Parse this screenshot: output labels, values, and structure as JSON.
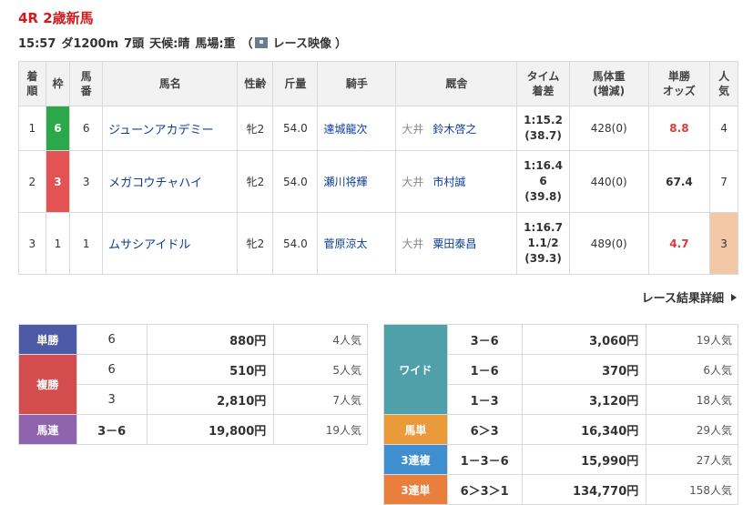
{
  "race": {
    "title": "4R 2歳新馬",
    "time": "15:57",
    "course": "ダ1200m",
    "heads": "7頭",
    "weather": "天候:晴",
    "track": "馬場:重",
    "video_open": "（",
    "video_label": "レース映像",
    "video_close": "）"
  },
  "results_headers": {
    "finish": [
      "着",
      "順"
    ],
    "frame": "枠",
    "num": [
      "馬",
      "番"
    ],
    "name": "馬名",
    "sexage": "性齢",
    "weight": "斤量",
    "jockey": "騎手",
    "stable": "厩舎",
    "time": [
      "タイム",
      "着差"
    ],
    "body": [
      "馬体重",
      "(増減)"
    ],
    "odds": [
      "単勝",
      "オッズ"
    ],
    "pop": [
      "人",
      "気"
    ]
  },
  "results": [
    {
      "finish": "1",
      "frame": "6",
      "frame_color": "#2aa84a",
      "num": "6",
      "name": "ジューンアカデミー",
      "sexage": "牝2",
      "weight": "54.0",
      "jockey": "達城龍次",
      "loc": "大井",
      "trainer": "鈴木啓之",
      "time": [
        "1:15.2",
        "(38.7)"
      ],
      "body": "428(0)",
      "odds": "8.8",
      "odds_style": "red",
      "pop": "4",
      "pop_hl": false
    },
    {
      "finish": "2",
      "frame": "3",
      "frame_color": "#e35353",
      "num": "3",
      "name": "メガコウチャハイ",
      "sexage": "牝2",
      "weight": "54.0",
      "jockey": "瀬川将輝",
      "loc": "大井",
      "trainer": "市村誠",
      "time": [
        "1:16.4",
        "6",
        "(39.8)"
      ],
      "body": "440(0)",
      "odds": "67.4",
      "odds_style": "plain",
      "pop": "7",
      "pop_hl": false
    },
    {
      "finish": "3",
      "frame": "1",
      "frame_color": "#ffffff",
      "num": "1",
      "name": "ムサシアイドル",
      "sexage": "牝2",
      "weight": "54.0",
      "jockey": "菅原涼太",
      "loc": "大井",
      "trainer": "粟田泰昌",
      "time": [
        "1:16.7",
        "1.1/2",
        "(39.3)"
      ],
      "body": "489(0)",
      "odds": "4.7",
      "odds_style": "red",
      "pop": "3",
      "pop_hl": true
    }
  ],
  "detail_link": "レース結果詳細",
  "payouts_left": {
    "win": {
      "label": "単勝",
      "rows": [
        {
          "combo": "6",
          "amount": "880円",
          "pop": "4人気"
        }
      ]
    },
    "place": {
      "label": "複勝",
      "rows": [
        {
          "combo": "6",
          "amount": "510円",
          "pop": "5人気"
        },
        {
          "combo": "3",
          "amount": "2,810円",
          "pop": "7人気"
        }
      ]
    },
    "quinella": {
      "label": "馬連",
      "rows": [
        {
          "combo": "3－6",
          "amount": "19,800円",
          "pop": "19人気"
        }
      ]
    }
  },
  "payouts_right": {
    "wide": {
      "label": "ワイド",
      "rows": [
        {
          "combo": "3－6",
          "amount": "3,060円",
          "pop": "19人気"
        },
        {
          "combo": "1－6",
          "amount": "370円",
          "pop": "6人気"
        },
        {
          "combo": "1－3",
          "amount": "3,120円",
          "pop": "18人気"
        }
      ]
    },
    "exacta": {
      "label": "馬単",
      "rows": [
        {
          "combo": "6＞3",
          "amount": "16,340円",
          "pop": "29人気"
        }
      ]
    },
    "trio": {
      "label": "3連複",
      "rows": [
        {
          "combo": "1－3－6",
          "amount": "15,990円",
          "pop": "27人気"
        }
      ]
    },
    "trifecta": {
      "label": "3連単",
      "rows": [
        {
          "combo": "6＞3＞1",
          "amount": "134,770円",
          "pop": "158人気"
        }
      ]
    }
  }
}
